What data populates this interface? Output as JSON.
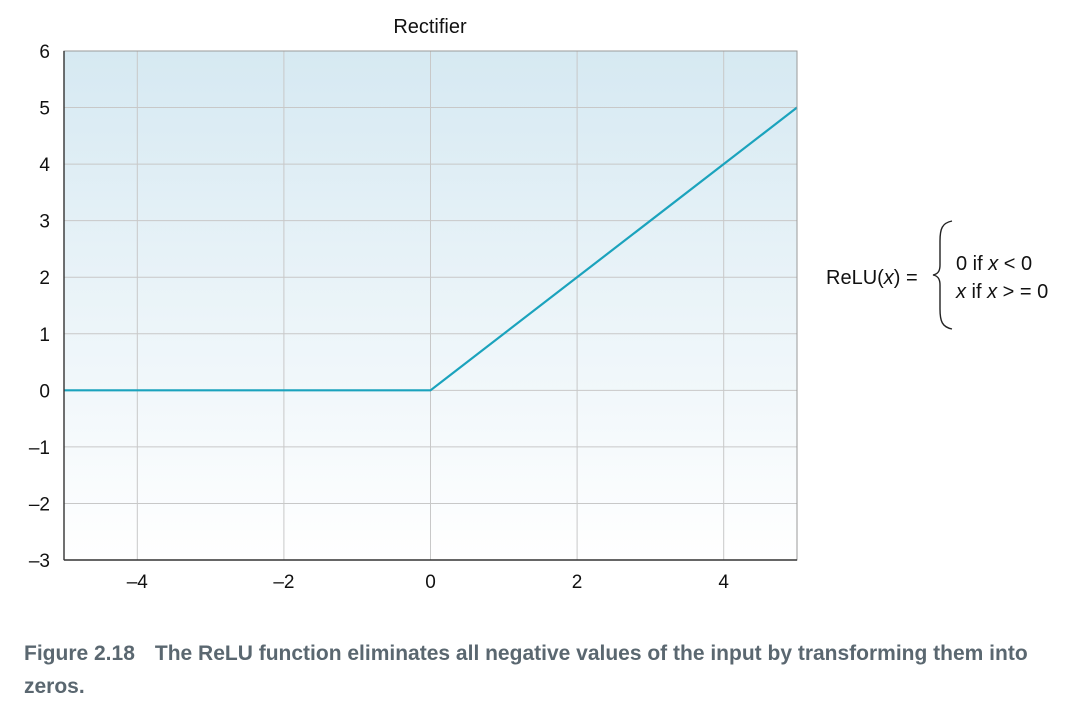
{
  "chart_data": {
    "type": "line",
    "title": "Rectifier",
    "xlabel": "",
    "ylabel": "",
    "xlim": [
      -5,
      5
    ],
    "ylim": [
      -3,
      6
    ],
    "x_ticks": [
      -4,
      -2,
      0,
      2,
      4
    ],
    "x_tick_labels": [
      "–4",
      "–2",
      "0",
      "2",
      "4"
    ],
    "y_ticks": [
      6,
      5,
      4,
      3,
      2,
      1,
      0,
      -1,
      -2,
      -3
    ],
    "y_tick_labels": [
      "6",
      "5",
      "4",
      "3",
      "2",
      "1",
      "0",
      "–1",
      "–2",
      "–3"
    ],
    "grid": true,
    "series": [
      {
        "x": [
          -5,
          0,
          5
        ],
        "y": [
          0,
          0,
          5
        ],
        "color": "#1ba3bd"
      }
    ],
    "background_gradient": [
      "#d6e9f2",
      "#ffffff"
    ],
    "grid_color": "#c8c8c8"
  },
  "formula": {
    "lhs_prefix": "ReLU(",
    "lhs_var": "x",
    "lhs_suffix": ") =",
    "case1_pre": "0 if ",
    "case1_var": "x",
    "case1_post": " < 0",
    "case2_var": "x",
    "case2_post": " if ",
    "case2_var2": "x",
    "case2_end": " > = 0"
  },
  "caption": {
    "figure_number": "Figure 2.18",
    "text": "The ReLU function eliminates all negative values of the input by transforming them into zeros."
  }
}
